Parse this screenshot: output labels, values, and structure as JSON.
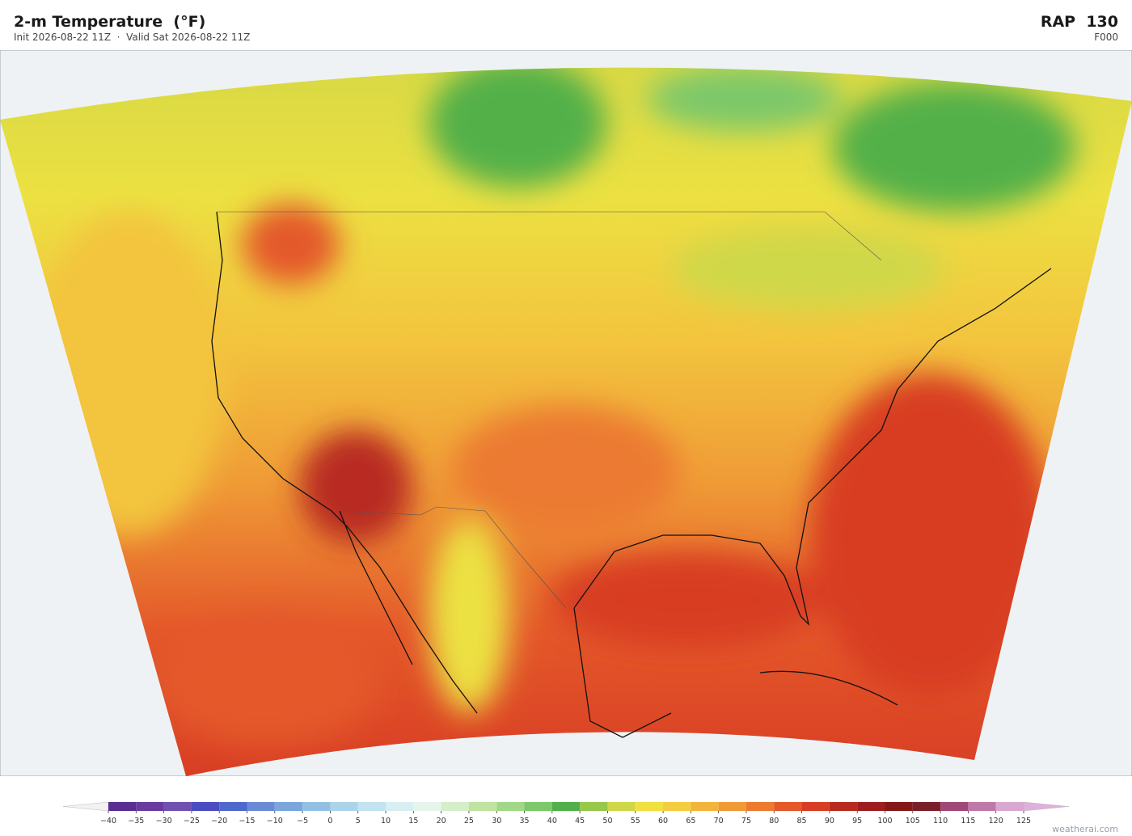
{
  "header": {
    "title": "2-m Temperature  (°F)",
    "subtitle": "Init 2026-08-22 11Z  ·  Valid Sat 2026-08-22 11Z",
    "model": "RAP  130",
    "forecast_hour": "F000"
  },
  "colorbar": {
    "ticks": [
      {
        "value": -40,
        "label": "−40"
      },
      {
        "value": -35,
        "label": "−35"
      },
      {
        "value": -30,
        "label": "−30"
      },
      {
        "value": -25,
        "label": "−25"
      },
      {
        "value": -20,
        "label": "−20"
      },
      {
        "value": -15,
        "label": "−15"
      },
      {
        "value": -10,
        "label": "−10"
      },
      {
        "value": -5,
        "label": "−5"
      },
      0,
      5,
      10,
      15,
      20,
      25,
      30,
      35,
      40,
      45,
      50,
      55,
      60,
      65,
      70,
      75,
      80,
      85,
      90,
      95,
      100,
      105,
      110,
      115,
      120,
      125
    ],
    "colors": [
      "#5a2d91",
      "#6a3a9e",
      "#7050b0",
      "#4a4cbf",
      "#4f68cc",
      "#6a8ad6",
      "#7aa6dc",
      "#93c0e2",
      "#aad4ea",
      "#c2e3f0",
      "#d8eef2",
      "#e6f5ec",
      "#d4eec8",
      "#bfe3a0",
      "#a0d888",
      "#7cc86a",
      "#52b04a",
      "#96c84a",
      "#cfd848",
      "#f0e040",
      "#f4cc40",
      "#f2b43c",
      "#f09a36",
      "#ec7a30",
      "#e4582a",
      "#d83e24",
      "#b82a20",
      "#9c1e1e",
      "#841818",
      "#7a1f2a",
      "#a04878",
      "#c078a8",
      "#d8a8d0"
    ],
    "under_color": "#f2f2f2",
    "over_color": "#e0b0dc"
  },
  "watermark": "weatherai.com"
}
